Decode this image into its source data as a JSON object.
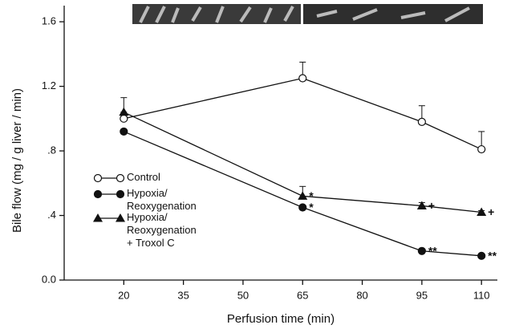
{
  "chart_data": {
    "type": "line",
    "x_label": "Perfusion time (min)",
    "y_label": "Bile flow (mg / g liver / min)",
    "x": [
      20,
      65,
      95,
      110
    ],
    "xlim": [
      5,
      114
    ],
    "xticks": [
      20,
      35,
      50,
      65,
      80,
      95,
      110
    ],
    "ylim": [
      0,
      1.7
    ],
    "yticks": [
      {
        "value": 0,
        "label": "0.0"
      },
      {
        "value": 0.4,
        "label": ".4"
      },
      {
        "value": 0.8,
        "label": ".8"
      },
      1.2,
      1.6
    ],
    "legend": "left",
    "series": [
      {
        "name": "Control",
        "marker": "open-circle",
        "color": "#111111",
        "values": [
          1.0,
          1.25,
          0.98,
          0.81
        ],
        "errors": [
          0.04,
          0.1,
          0.1,
          0.11
        ],
        "significance": [
          null,
          null,
          null,
          null
        ]
      },
      {
        "name": "Hypoxia/\nReoxygenation",
        "marker": "circle",
        "color": "#111111",
        "values": [
          0.92,
          0.45,
          0.18,
          0.15
        ],
        "significance": [
          null,
          "*",
          "**",
          "**"
        ]
      },
      {
        "name": "Hypoxia/\nReoxygenation\n+ Troxol C",
        "marker": "triangle",
        "color": "#111111",
        "values": [
          1.04,
          0.52,
          0.46,
          0.42
        ],
        "errors": [
          0.09,
          0.06,
          0.02,
          0.01
        ],
        "significance": [
          null,
          "*",
          "+",
          "+"
        ]
      }
    ]
  }
}
